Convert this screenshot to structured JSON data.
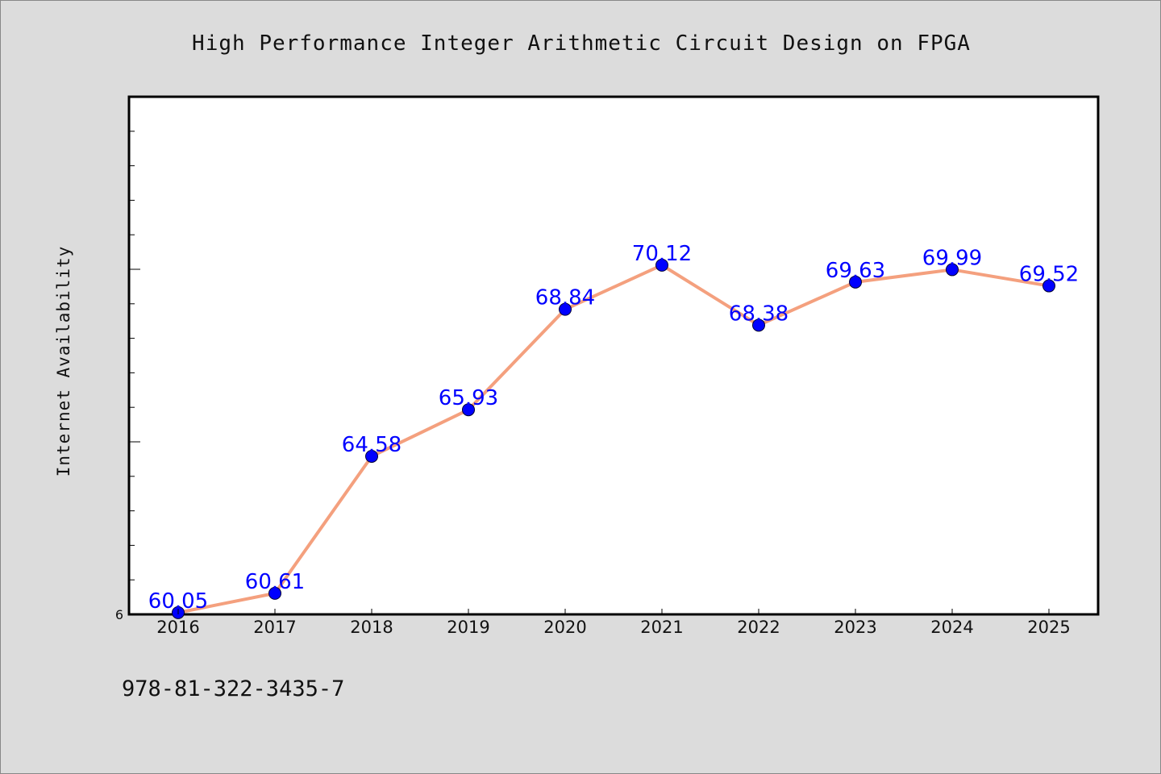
{
  "chart_data": {
    "type": "line",
    "title": "High Performance Integer Arithmetic Circuit Design on FPGA",
    "xlabel": "",
    "ylabel": "Internet Availability",
    "categories": [
      "2016",
      "2017",
      "2018",
      "2019",
      "2020",
      "2021",
      "2022",
      "2023",
      "2024",
      "2025"
    ],
    "values": [
      60.05,
      60.61,
      64.58,
      65.93,
      68.84,
      70.12,
      68.38,
      69.63,
      69.99,
      69.52
    ],
    "data_labels": [
      "60.05",
      "60.61",
      "64.58",
      "65.93",
      "68.84",
      "70.12",
      "68.38",
      "69.63",
      "69.99",
      "69.52"
    ],
    "ylim": [
      60,
      75
    ],
    "y_tick_labels": [
      "6"
    ],
    "grid": false,
    "legend": "none",
    "line_color": "#f4a07e",
    "marker_color": "#0000ff",
    "label_color": "#0000ff"
  },
  "footer_text": "978-81-322-3435-7"
}
